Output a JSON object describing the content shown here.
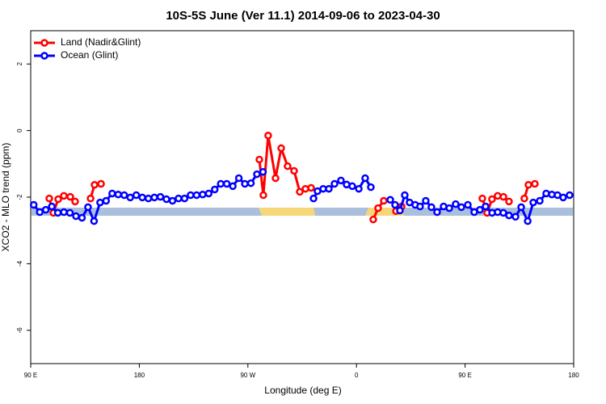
{
  "chart_data": {
    "type": "line",
    "title": "10S-5S June (Ver 11.1)   2014-09-06 to 2023-04-30",
    "xlabel": "Longitude (deg E)",
    "ylabel": "XCO2 - MLO trend (ppm)",
    "xlim": [
      90,
      540
    ],
    "ylim": [
      -7,
      3
    ],
    "xticks": [
      {
        "value": 90,
        "label": "90 E"
      },
      180,
      {
        "value": 270,
        "label": "90 W"
      },
      {
        "value": 360,
        "label": "0"
      },
      {
        "value": 450,
        "label": "90 E"
      },
      {
        "value": 540,
        "label": "180"
      }
    ],
    "yticks": [
      2,
      0,
      -2,
      -4,
      -6
    ],
    "legend": "top-left",
    "series": [
      {
        "name": "Land (Nadir&Glint)",
        "color": "#ff0000",
        "x": [
          105.4,
          108.8,
          112.8,
          117.5,
          122.8,
          126.8,
          null,
          139.6,
          142.9,
          148.3,
          null,
          279.5,
          282.8,
          286.8,
          292.9,
          297.6,
          302.9,
          308.3,
          313,
          317.7,
          322.4,
          null,
          373.9,
          377.9,
          382.6,
          null,
          392.7,
          397.4,
          null,
          464.3,
          468.3,
          472.3,
          477,
          481.8,
          486.4,
          null,
          499.1,
          502.5,
          507.8
        ],
        "values": [
          -2.04,
          -2.47,
          -2.06,
          -1.96,
          -1.99,
          -2.13,
          null,
          -2.04,
          -1.63,
          -1.6,
          null,
          -0.87,
          -1.94,
          -0.15,
          -1.43,
          -0.53,
          -1.07,
          -1.21,
          -1.84,
          -1.75,
          -1.72,
          null,
          -2.67,
          -2.33,
          -2.11,
          null,
          -2.42,
          -2.28,
          null,
          -2.04,
          -2.47,
          -2.06,
          -1.96,
          -1.99,
          -2.13,
          null,
          -2.04,
          -1.63,
          -1.6
        ]
      },
      {
        "name": "Ocean (Glint)",
        "color": "#0000ff",
        "x": [
          92.5,
          97.5,
          102.5,
          107.5,
          112.5,
          117.5,
          122.5,
          127.5,
          132.5,
          137.5,
          142.5,
          147.5,
          152.5,
          157.5,
          162.5,
          167.5,
          172.5,
          177.5,
          182.5,
          187.5,
          192.5,
          197.5,
          202.5,
          207.5,
          212.5,
          217.5,
          222.5,
          227.5,
          232.5,
          237.5,
          242.5,
          247.5,
          252.5,
          257.5,
          262.5,
          267.5,
          272.5,
          277.5,
          282.5,
          null,
          324.4,
          327.7,
          332.4,
          337.1,
          341.8,
          347.1,
          351.8,
          356.5,
          361.9,
          367.2,
          371.9,
          null,
          388,
          392,
          396,
          400,
          404,
          408.7,
          412.7,
          417.4,
          422.1,
          426.8,
          432.2,
          436.9,
          442.2,
          446.9,
          452.3,
          457.6,
          462.3,
          467,
          472.4,
          477,
          481.7,
          486.4,
          491.8,
          496.5,
          501.9,
          506.5,
          511.9,
          517.2,
          521.9,
          526.6,
          531.3,
          536.6
        ],
        "values": [
          -2.23,
          -2.45,
          -2.38,
          -2.28,
          -2.47,
          -2.45,
          -2.47,
          -2.57,
          -2.62,
          -2.3,
          -2.72,
          -2.16,
          -2.11,
          -1.89,
          -1.92,
          -1.94,
          -2.01,
          -1.94,
          -2.01,
          -2.04,
          -2.01,
          -1.99,
          -2.06,
          -2.11,
          -2.04,
          -2.04,
          -1.94,
          -1.94,
          -1.92,
          -1.89,
          -1.77,
          -1.6,
          -1.6,
          -1.67,
          -1.43,
          -1.6,
          -1.58,
          -1.31,
          -1.24,
          null,
          -2.04,
          -1.82,
          -1.75,
          -1.75,
          -1.6,
          -1.5,
          -1.62,
          -1.67,
          -1.75,
          -1.43,
          -1.7,
          null,
          -2.08,
          -2.23,
          -2.4,
          -1.94,
          -2.16,
          -2.23,
          -2.28,
          -2.11,
          -2.3,
          -2.45,
          -2.28,
          -2.33,
          -2.21,
          -2.3,
          -2.23,
          -2.45,
          -2.38,
          -2.28,
          -2.47,
          -2.45,
          -2.47,
          -2.55,
          -2.59,
          -2.3,
          -2.72,
          -2.16,
          -2.11,
          -1.89,
          -1.92,
          -1.94,
          -2.01,
          -1.94
        ]
      }
    ]
  }
}
